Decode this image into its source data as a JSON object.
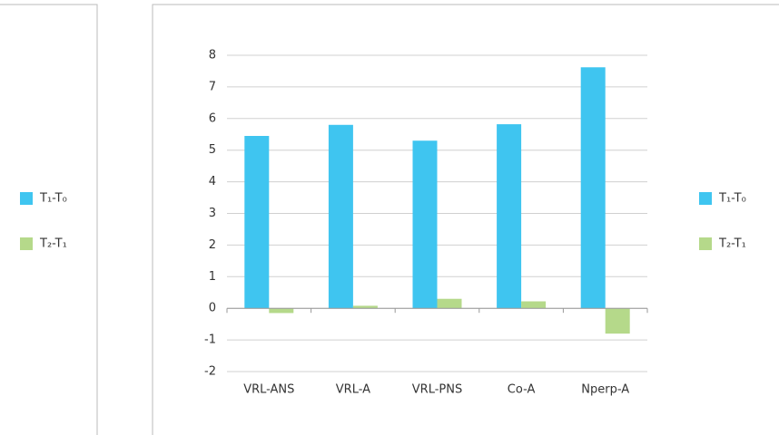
{
  "chart_data": {
    "type": "bar",
    "categories": [
      "VRL-ANS",
      "VRL-A",
      "VRL-PNS",
      "Co-A",
      "Nperp-A"
    ],
    "series": [
      {
        "name": "T₁-T₀",
        "color": "#3fc5f0",
        "values": [
          5.45,
          5.8,
          5.3,
          5.82,
          7.62
        ]
      },
      {
        "name": "T₂-T₁",
        "color": "#b5d98a",
        "values": [
          -0.15,
          0.08,
          0.3,
          0.22,
          -0.8
        ]
      }
    ],
    "ylim": [
      -2,
      8
    ],
    "yticks": [
      -2,
      -1,
      0,
      1,
      2,
      3,
      4,
      5,
      6,
      7,
      8
    ],
    "grid": true,
    "legend": "right"
  }
}
